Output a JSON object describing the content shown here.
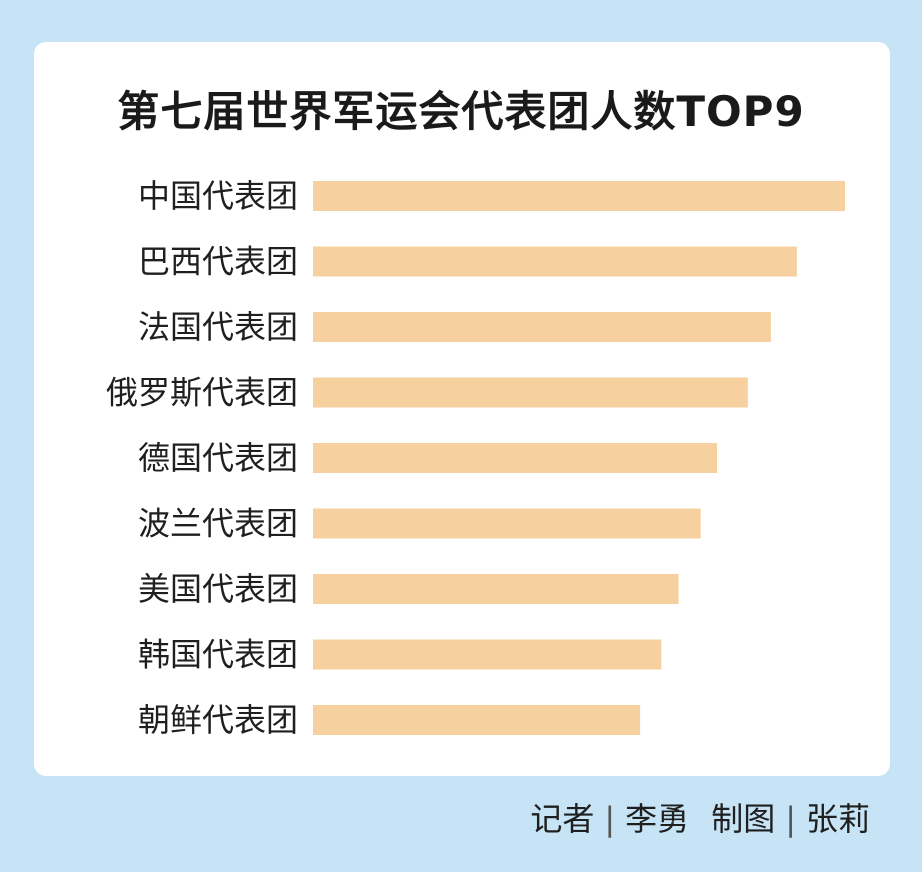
{
  "chart_data": {
    "type": "bar",
    "orientation": "horizontal",
    "title": "第七届世界军运会代表团人数TOP9",
    "categories": [
      "中国代表团",
      "巴西代表团",
      "法国代表团",
      "俄罗斯代表团",
      "德国代表团",
      "波兰代表团",
      "美国代表团",
      "韩国代表团",
      "朝鲜代表团"
    ],
    "values": [
      553,
      503,
      476,
      452,
      420,
      403,
      380,
      362,
      340
    ],
    "grid": false,
    "legend": "none",
    "bar_color": "#f6d19f"
  },
  "credit": {
    "reporter_label": "记者",
    "reporter_name": "李勇",
    "graphic_label": "制图",
    "graphic_name": "张莉",
    "separator": "|"
  }
}
